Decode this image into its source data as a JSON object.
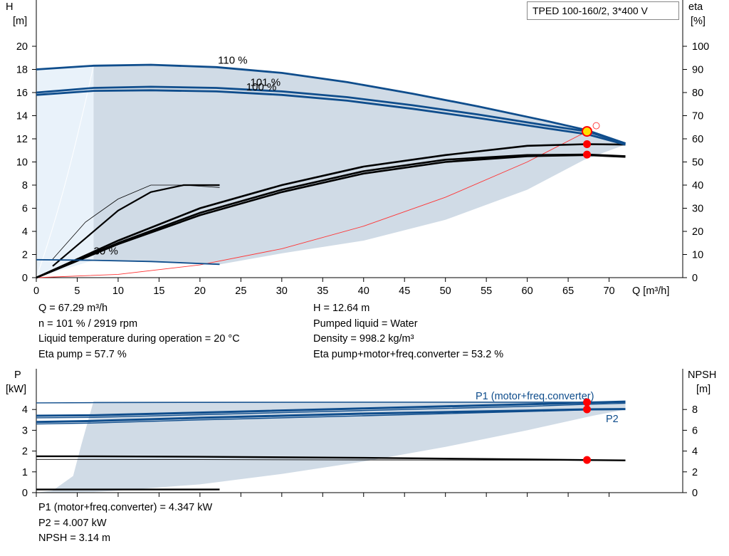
{
  "title": "TPED 100-160/2, 3*400 V",
  "info_top_left": [
    "Q = 67.29 m³/h",
    "n = 101 % / 2919 rpm",
    "Liquid temperature during operation = 20 °C",
    "Eta pump = 57.7 %"
  ],
  "info_top_right": [
    "H = 12.64 m",
    "Pumped liquid = Water",
    "Density = 998.2 kg/m³",
    "Eta pump+motor+freq.converter = 53.2 %"
  ],
  "info_bottom": [
    "P1 (motor+freq.converter) = 4.347 kW",
    "P2 = 4.007 kW",
    "NPSH = 3.14 m"
  ],
  "colors": {
    "curve": "#0f4d8c",
    "area": "#d0dbe6",
    "light_area": "#e9f2fa",
    "duty_point": "#ff0000",
    "system_curve": "#ff3333",
    "efficiency": "#000000"
  },
  "chart_data": [
    {
      "type": "line",
      "name": "QH",
      "xlabel": "Q [m³/h]",
      "ylabel": "H [m]",
      "y2label": "eta [%]",
      "y_unit_top": "H",
      "y_unit_bottom": "[m]",
      "y2_unit_top": "eta",
      "y2_unit_bottom": "[%]",
      "x_unit_label": "Q [m³/h]",
      "xlim": [
        0,
        79
      ],
      "ylim": [
        0,
        24
      ],
      "y2lim": [
        0,
        120
      ],
      "xticks": [
        0,
        5,
        10,
        15,
        20,
        25,
        30,
        35,
        40,
        45,
        50,
        55,
        60,
        65,
        70
      ],
      "yticks": [
        0,
        2,
        4,
        6,
        8,
        10,
        12,
        14,
        16,
        18,
        20
      ],
      "y2ticks": [
        0,
        10,
        20,
        30,
        40,
        50,
        60,
        70,
        80,
        90,
        100
      ],
      "grid": false,
      "head_curves": [
        {
          "label": "110 %",
          "label_at": [
            24,
            18.5
          ],
          "x": [
            0,
            7,
            14,
            22,
            30,
            38,
            46,
            54,
            62,
            67.3,
            72
          ],
          "y": [
            18.0,
            18.32,
            18.4,
            18.2,
            17.7,
            16.9,
            15.9,
            14.8,
            13.6,
            12.75,
            11.6
          ]
        },
        {
          "label": "101 %",
          "label_at": [
            28,
            16.6
          ],
          "x": [
            0,
            7,
            14,
            22,
            30,
            38,
            46,
            54,
            62,
            67.3,
            72
          ],
          "y": [
            16.0,
            16.4,
            16.5,
            16.4,
            16.1,
            15.6,
            14.9,
            14.1,
            13.2,
            12.64,
            11.6
          ]
        },
        {
          "label": "100 %",
          "label_at": [
            27.5,
            16.2
          ],
          "x": [
            0,
            7,
            14,
            22,
            30,
            38,
            46,
            54,
            62,
            67.3,
            72
          ],
          "y": [
            15.8,
            16.15,
            16.2,
            16.1,
            15.8,
            15.3,
            14.6,
            13.8,
            12.95,
            12.4,
            11.5
          ]
        },
        {
          "label": "30 %",
          "label_at": [
            8.5,
            2.0
          ],
          "x": [
            0,
            7,
            14,
            22.4
          ],
          "y": [
            1.55,
            1.5,
            1.4,
            1.15
          ]
        }
      ],
      "efficiency_curves": [
        {
          "x": [
            2,
            6,
            10,
            14,
            18,
            22.4
          ],
          "y": [
            8,
            24,
            34,
            40,
            40,
            39
          ]
        },
        {
          "x": [
            2,
            6,
            10,
            14,
            18,
            22.4
          ],
          "y": [
            5,
            17,
            29,
            37,
            40,
            40
          ]
        },
        {
          "x": [
            0,
            10,
            20,
            30,
            40,
            50,
            60,
            67.3,
            72
          ],
          "y": [
            0,
            16,
            30,
            40,
            48,
            53,
            57,
            57.7,
            57.5
          ]
        },
        {
          "x": [
            0,
            10,
            20,
            30,
            40,
            50,
            60,
            67.3,
            72
          ],
          "y": [
            0,
            15,
            28,
            38,
            46,
            51,
            53,
            53.2,
            52.5
          ]
        },
        {
          "x": [
            0,
            10,
            20,
            30,
            40,
            50,
            60,
            67.3,
            72
          ],
          "y": [
            0,
            14.5,
            27,
            37,
            45,
            50,
            52.5,
            53,
            52.2
          ]
        }
      ],
      "system_curve": {
        "x": [
          0,
          10,
          20,
          30,
          40,
          50,
          60,
          67.3
        ],
        "y": [
          0,
          0.28,
          1.1,
          2.5,
          4.45,
          6.95,
          10.0,
          12.64
        ]
      },
      "duty_points": [
        {
          "x": 67.3,
          "y": 12.64,
          "kind": "head"
        },
        {
          "x": 67.3,
          "y": 11.54,
          "kind": "eta_pump"
        },
        {
          "x": 67.3,
          "y": 10.64,
          "kind": "eta_total"
        }
      ]
    },
    {
      "type": "line",
      "name": "Power/NPSH",
      "ylabel": "P [kW]",
      "y2label": "NPSH [m]",
      "y_unit_top": "P",
      "y_unit_bottom": "[kW]",
      "y2_unit_top": "NPSH",
      "y2_unit_bottom": "[m]",
      "xlim": [
        0,
        79
      ],
      "ylim": [
        0,
        5
      ],
      "y2lim": [
        0,
        10
      ],
      "yticks": [
        0,
        1,
        2,
        3,
        4
      ],
      "y2ticks": [
        0,
        2,
        4,
        6,
        8
      ],
      "grid": false,
      "p1_label": "P1 (motor+freq.converter)",
      "p2_label": "P2",
      "power_curves": [
        {
          "kind": "P1",
          "x": [
            0,
            7,
            20,
            40,
            60,
            67.3,
            72
          ],
          "y": [
            4.32,
            4.33,
            4.34,
            4.345,
            4.347,
            4.347,
            4.35
          ]
        },
        {
          "kind": "P1",
          "x": [
            0,
            7,
            20,
            40,
            60,
            67.3,
            72
          ],
          "y": [
            3.7,
            3.72,
            3.85,
            4.05,
            4.25,
            4.33,
            4.38
          ]
        },
        {
          "kind": "P1",
          "x": [
            0,
            7,
            20,
            40,
            60,
            67.3,
            72
          ],
          "y": [
            3.6,
            3.62,
            3.75,
            3.95,
            4.15,
            4.25,
            4.3
          ]
        },
        {
          "kind": "P2",
          "x": [
            0,
            7,
            20,
            40,
            60,
            67.3,
            72
          ],
          "y": [
            3.4,
            3.45,
            3.6,
            3.8,
            3.95,
            4.007,
            4.02
          ]
        },
        {
          "kind": "P2",
          "x": [
            0,
            7,
            20,
            40,
            60,
            67.3,
            72
          ],
          "y": [
            3.3,
            3.35,
            3.5,
            3.7,
            3.9,
            3.98,
            4.0
          ]
        },
        {
          "kind": "low",
          "x": [
            0,
            22.4
          ],
          "y": [
            0.15,
            0.15
          ]
        }
      ],
      "npsh_curves": [
        {
          "x": [
            0,
            7,
            20,
            40,
            60,
            67.3,
            72
          ],
          "y": [
            3.5,
            3.5,
            3.45,
            3.35,
            3.2,
            3.14,
            3.1
          ]
        },
        {
          "x": [
            0,
            7,
            20,
            40,
            60,
            67.3,
            72
          ],
          "y": [
            3.2,
            3.2,
            3.18,
            3.15,
            3.12,
            3.1,
            3.08
          ]
        }
      ],
      "duty_points": [
        {
          "x": 67.3,
          "y": 4.347,
          "kind": "P1"
        },
        {
          "x": 67.3,
          "y": 4.007,
          "kind": "P2"
        },
        {
          "x": 67.3,
          "y": 1.57,
          "kind": "NPSH"
        }
      ]
    }
  ]
}
